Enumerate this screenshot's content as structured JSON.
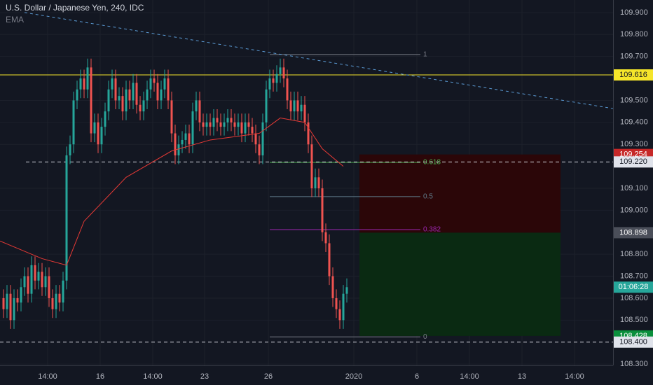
{
  "chart_data": {
    "type": "candlestick",
    "title": "U.S. Dollar / Japanese Yen, 240, IDC",
    "indicator": "EMA",
    "countdown": "01:06:28",
    "xlim": [
      -1,
      174
    ],
    "ylim": [
      108.294,
      109.957
    ],
    "grid": true,
    "up_color": "#26a69a",
    "down_color": "#ef5350",
    "xticks": [
      {
        "value": 12.6,
        "label": "14:00"
      },
      {
        "value": 27.6,
        "label": "16"
      },
      {
        "value": 42.6,
        "label": "14:00"
      },
      {
        "value": 57.4,
        "label": "23"
      },
      {
        "value": 75.6,
        "label": "26"
      },
      {
        "value": 100,
        "label": "2020"
      },
      {
        "value": 118,
        "label": "6"
      },
      {
        "value": 133,
        "label": "14:00"
      },
      {
        "value": 148,
        "label": "13"
      },
      {
        "value": 163,
        "label": "14:00"
      }
    ],
    "yticks": [
      {
        "value": 108.3,
        "label": "108.300"
      },
      {
        "value": 108.5,
        "label": "108.500"
      },
      {
        "value": 108.6,
        "label": "108.600"
      },
      {
        "value": 108.7,
        "label": "108.700"
      },
      {
        "value": 108.8,
        "label": "108.800"
      },
      {
        "value": 109.0,
        "label": "109.000"
      },
      {
        "value": 109.1,
        "label": "109.100"
      },
      {
        "value": 109.3,
        "label": "109.300"
      },
      {
        "value": 109.4,
        "label": "109.400"
      },
      {
        "value": 109.5,
        "label": "109.500"
      },
      {
        "value": 109.7,
        "label": "109.700"
      },
      {
        "value": 109.8,
        "label": "109.800"
      },
      {
        "value": 109.9,
        "label": "109.900"
      }
    ],
    "candles": {
      "open": [
        108.6,
        108.55,
        108.62,
        108.5,
        108.6,
        108.58,
        108.65,
        108.7,
        108.62,
        108.75,
        108.68,
        108.72,
        108.65,
        108.7,
        108.6,
        108.55,
        108.62,
        108.58,
        108.68,
        109.25,
        109.3,
        109.5,
        109.55,
        109.6,
        109.55,
        109.65,
        109.35,
        109.4,
        109.3,
        109.38,
        109.45,
        109.55,
        109.6,
        109.5,
        109.52,
        109.45,
        109.55,
        109.5,
        109.58,
        109.48,
        109.45,
        109.5,
        109.55,
        109.6,
        109.58,
        109.5,
        109.55,
        109.6,
        109.5,
        109.35,
        109.25,
        109.3,
        109.32,
        109.35,
        109.3,
        109.45,
        109.5,
        109.4,
        109.38,
        109.4,
        109.38,
        109.42,
        109.4,
        109.38,
        109.4,
        109.42,
        109.4,
        109.38,
        109.4,
        109.35,
        109.4,
        109.38,
        109.35,
        109.3,
        109.25,
        109.4,
        109.55,
        109.6,
        109.58,
        109.62,
        109.65,
        109.6,
        109.5,
        109.45,
        109.5,
        109.45,
        109.48,
        109.4,
        109.3,
        109.1,
        109.15,
        109.1,
        108.9,
        108.85,
        108.7,
        108.6,
        108.55,
        108.5,
        108.62
      ],
      "high": [
        108.64,
        108.66,
        108.66,
        108.64,
        108.64,
        108.69,
        108.74,
        108.74,
        108.79,
        108.79,
        108.76,
        108.76,
        108.74,
        108.74,
        108.64,
        108.66,
        108.66,
        108.72,
        109.29,
        109.34,
        109.54,
        109.59,
        109.64,
        109.64,
        109.69,
        109.69,
        109.44,
        109.44,
        109.42,
        109.49,
        109.59,
        109.64,
        109.64,
        109.56,
        109.56,
        109.59,
        109.59,
        109.62,
        109.62,
        109.52,
        109.54,
        109.59,
        109.64,
        109.64,
        109.62,
        109.59,
        109.64,
        109.64,
        109.54,
        109.39,
        109.34,
        109.36,
        109.39,
        109.39,
        109.49,
        109.54,
        109.54,
        109.44,
        109.44,
        109.44,
        109.46,
        109.46,
        109.44,
        109.44,
        109.46,
        109.46,
        109.44,
        109.44,
        109.44,
        109.44,
        109.44,
        109.42,
        109.39,
        109.34,
        109.44,
        109.59,
        109.64,
        109.64,
        109.66,
        109.69,
        109.69,
        109.64,
        109.54,
        109.54,
        109.54,
        109.52,
        109.52,
        109.44,
        109.34,
        109.19,
        109.19,
        109.14,
        108.94,
        108.89,
        108.74,
        108.64,
        108.59,
        108.66,
        108.69
      ],
      "low": [
        108.51,
        108.51,
        108.46,
        108.46,
        108.54,
        108.54,
        108.61,
        108.58,
        108.58,
        108.64,
        108.64,
        108.61,
        108.61,
        108.56,
        108.51,
        108.51,
        108.54,
        108.54,
        108.64,
        109.21,
        109.26,
        109.46,
        109.51,
        109.51,
        109.51,
        109.31,
        109.31,
        109.26,
        109.26,
        109.34,
        109.41,
        109.51,
        109.46,
        109.46,
        109.41,
        109.41,
        109.46,
        109.46,
        109.44,
        109.41,
        109.41,
        109.46,
        109.51,
        109.54,
        109.46,
        109.46,
        109.51,
        109.46,
        109.31,
        109.21,
        109.21,
        109.26,
        109.28,
        109.26,
        109.26,
        109.41,
        109.36,
        109.34,
        109.34,
        109.34,
        109.34,
        109.36,
        109.34,
        109.34,
        109.36,
        109.36,
        109.34,
        109.34,
        109.31,
        109.31,
        109.34,
        109.31,
        109.26,
        109.21,
        109.21,
        109.36,
        109.51,
        109.54,
        109.54,
        109.58,
        109.56,
        109.46,
        109.41,
        109.41,
        109.41,
        109.41,
        109.36,
        109.26,
        109.06,
        109.06,
        109.06,
        108.86,
        108.81,
        108.66,
        108.56,
        108.51,
        108.46,
        108.46,
        108.58
      ],
      "close": [
        108.55,
        108.62,
        108.5,
        108.6,
        108.58,
        108.65,
        108.7,
        108.62,
        108.75,
        108.68,
        108.72,
        108.65,
        108.7,
        108.6,
        108.55,
        108.62,
        108.58,
        108.68,
        109.25,
        109.3,
        109.5,
        109.55,
        109.6,
        109.55,
        109.65,
        109.35,
        109.4,
        109.3,
        109.38,
        109.45,
        109.55,
        109.6,
        109.5,
        109.52,
        109.45,
        109.55,
        109.5,
        109.58,
        109.48,
        109.45,
        109.5,
        109.55,
        109.6,
        109.58,
        109.5,
        109.55,
        109.6,
        109.5,
        109.35,
        109.25,
        109.3,
        109.32,
        109.35,
        109.3,
        109.45,
        109.5,
        109.4,
        109.38,
        109.4,
        109.38,
        109.42,
        109.4,
        109.38,
        109.4,
        109.42,
        109.4,
        109.38,
        109.4,
        109.35,
        109.4,
        109.38,
        109.35,
        109.3,
        109.25,
        109.4,
        109.55,
        109.6,
        109.58,
        109.62,
        109.65,
        109.6,
        109.5,
        109.45,
        109.5,
        109.45,
        109.48,
        109.4,
        109.3,
        109.1,
        109.15,
        109.1,
        108.9,
        108.85,
        108.7,
        108.6,
        108.55,
        108.5,
        108.62,
        108.65
      ]
    },
    "ema": {
      "color": "#e53935",
      "x": [
        -1,
        11,
        18,
        23,
        35,
        48,
        59,
        73,
        79,
        86,
        91,
        97
      ],
      "values": [
        108.86,
        108.78,
        108.75,
        108.95,
        109.15,
        109.27,
        109.32,
        109.35,
        109.42,
        109.4,
        109.28,
        109.2
      ]
    },
    "trendline": {
      "color": "#5b9bd5",
      "x": [
        6,
        174
      ],
      "values": [
        109.9,
        109.463
      ]
    },
    "hlines": [
      {
        "value": 109.616,
        "label": "109.616",
        "color": "#f5e52a",
        "style": "solid",
        "x0": -1
      },
      {
        "value": 109.22,
        "label": "109.220",
        "color": "#d1d4dc",
        "style": "dashed",
        "x0": 6.4
      },
      {
        "value": 108.4,
        "label": "108.400",
        "color": "#d1d4dc",
        "style": "dashed",
        "x0": -1
      }
    ],
    "fib": {
      "x": [
        76,
        119
      ],
      "levels": [
        {
          "ratio": 1,
          "value": 109.709,
          "color": "#787b86"
        },
        {
          "ratio": 0.618,
          "value": 109.218,
          "color": "#4caf50"
        },
        {
          "ratio": 0.5,
          "value": 109.062,
          "color": "#607d8b"
        },
        {
          "ratio": 0.382,
          "value": 108.912,
          "color": "#9c27b0"
        },
        {
          "ratio": 0,
          "value": 108.424,
          "color": "#787b86"
        }
      ]
    },
    "position": {
      "x": [
        101.6,
        159
      ],
      "stop": 109.254,
      "entry": 108.898,
      "target": 108.428,
      "stop_color": "#2b0608",
      "target_color": "#0a2a12"
    }
  }
}
